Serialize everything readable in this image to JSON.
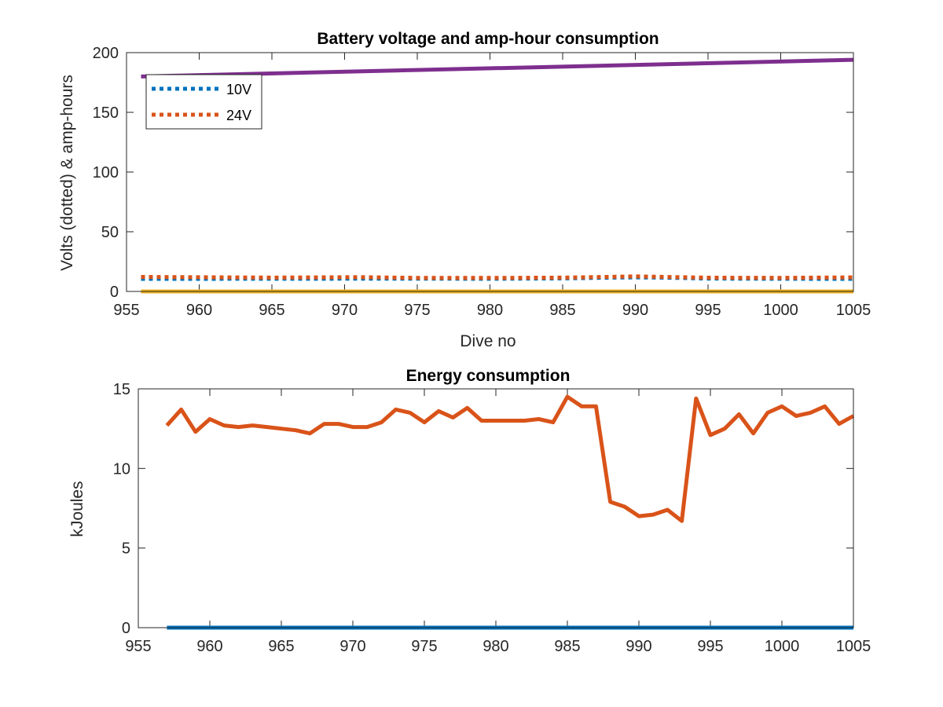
{
  "chart_data": [
    {
      "type": "line",
      "title": "Battery voltage and amp-hour consumption",
      "xlabel": "Dive no",
      "ylabel": "Volts (dotted) & amp-hours",
      "xlim": [
        955,
        1005
      ],
      "ylim": [
        0,
        200
      ],
      "xticks": [
        955,
        960,
        965,
        970,
        975,
        980,
        985,
        990,
        995,
        1000,
        1005
      ],
      "yticks": [
        0,
        50,
        100,
        150,
        200
      ],
      "grid": false,
      "legend_position": "top-left",
      "series": [
        {
          "name": "10V",
          "color": "#0072BD",
          "style": "dotted",
          "x": [
            956,
            965,
            975,
            980,
            985,
            988,
            990,
            992,
            995,
            1000,
            1005
          ],
          "y": [
            10.5,
            10.6,
            10.7,
            10.6,
            10.9,
            11.5,
            11.8,
            11.6,
            10.8,
            10.6,
            10.5
          ]
        },
        {
          "name": "24V",
          "color": "#D95319",
          "style": "dotted",
          "x": [
            956,
            965,
            971,
            975,
            980,
            985,
            988,
            990,
            992,
            995,
            1000,
            1005
          ],
          "y": [
            12.2,
            11.6,
            12.0,
            11.4,
            11.3,
            11.6,
            12.2,
            12.6,
            12.2,
            11.5,
            11.4,
            11.8
          ]
        },
        {
          "color": "#7E2F8E",
          "style": "solid",
          "x": [
            956,
            1005
          ],
          "y": [
            180,
            194
          ]
        },
        {
          "color": "#EDB120",
          "style": "solid",
          "x": [
            956,
            1005
          ],
          "y": [
            0,
            0
          ]
        }
      ]
    },
    {
      "type": "line",
      "title": "Energy consumption",
      "xlabel": "",
      "ylabel": "kJoules",
      "xlim": [
        955,
        1005
      ],
      "ylim": [
        0,
        15
      ],
      "xticks": [
        955,
        960,
        965,
        970,
        975,
        980,
        985,
        990,
        995,
        1000,
        1005
      ],
      "yticks": [
        0,
        5,
        10,
        15
      ],
      "grid": false,
      "series": [
        {
          "color": "#D95319",
          "style": "solid",
          "x": [
            957,
            958,
            959,
            960,
            961,
            962,
            963,
            964,
            965,
            966,
            967,
            968,
            969,
            970,
            971,
            972,
            973,
            974,
            975,
            976,
            977,
            978,
            979,
            980,
            981,
            982,
            983,
            984,
            985,
            986,
            987,
            988,
            989,
            990,
            991,
            992,
            993,
            994,
            995,
            996,
            997,
            998,
            999,
            1000,
            1001,
            1002,
            1003,
            1004,
            1005
          ],
          "y": [
            12.7,
            13.7,
            12.3,
            13.1,
            12.7,
            12.6,
            12.7,
            12.6,
            12.5,
            12.4,
            12.2,
            12.8,
            12.8,
            12.6,
            12.6,
            12.9,
            13.7,
            13.5,
            12.9,
            13.6,
            13.2,
            13.8,
            13.0,
            13.0,
            13.0,
            13.0,
            13.1,
            12.9,
            14.5,
            13.9,
            13.9,
            7.9,
            7.6,
            7.0,
            7.1,
            7.4,
            6.7,
            14.4,
            12.1,
            12.5,
            13.4,
            12.2,
            13.5,
            13.9,
            13.3,
            13.5,
            13.9,
            12.8,
            13.3
          ]
        },
        {
          "color": "#0072BD",
          "style": "solid",
          "x": [
            957,
            1005
          ],
          "y": [
            0,
            0
          ]
        }
      ]
    }
  ]
}
